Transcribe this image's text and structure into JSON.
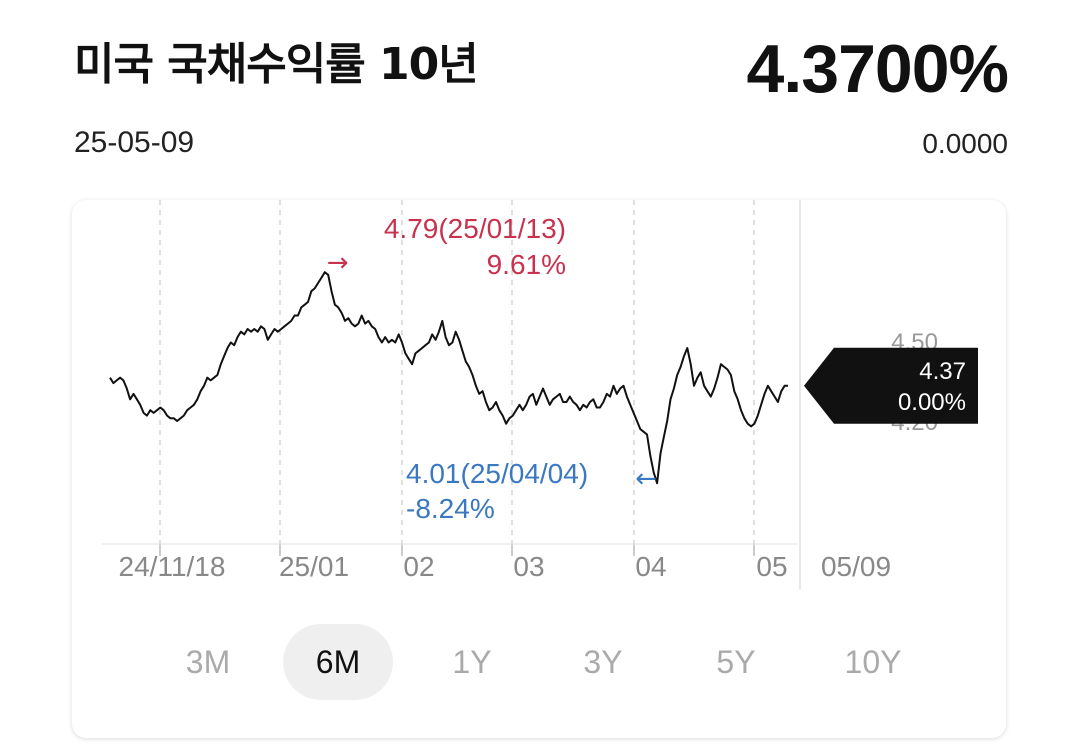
{
  "header": {
    "title": "미국 국채수익률 10년",
    "value": "4.3700%",
    "date": "25-05-09",
    "change": "0.0000"
  },
  "chart_data": {
    "type": "line",
    "x_ticks": [
      "24/11/18",
      "25/01",
      "02",
      "03",
      "04",
      "05"
    ],
    "x_end_label": "05/09",
    "y_ticks": [
      "4.50",
      "4.20"
    ],
    "high": {
      "value": "4.79",
      "date": "25/01/13",
      "pct": "9.61%",
      "color": "#c8324f"
    },
    "low": {
      "value": "4.01",
      "date": "25/04/04",
      "pct": "-8.24%",
      "color": "#3a78c2"
    },
    "current": {
      "value": "4.37",
      "pct": "0.00%"
    },
    "ylim": [
      3.8,
      5.02
    ],
    "series": [
      {
        "values": [
          4.4,
          4.38,
          4.39,
          4.4,
          4.39,
          4.36,
          4.32,
          4.34,
          4.32,
          4.3,
          4.27,
          4.26,
          4.28,
          4.27,
          4.28,
          4.29,
          4.28,
          4.26,
          4.25,
          4.25,
          4.24,
          4.25,
          4.26,
          4.28,
          4.29,
          4.3,
          4.32,
          4.35,
          4.37,
          4.4,
          4.39,
          4.4,
          4.41,
          4.45,
          4.48,
          4.51,
          4.53,
          4.52,
          4.55,
          4.57,
          4.56,
          4.58,
          4.57,
          4.58,
          4.57,
          4.59,
          4.58,
          4.54,
          4.56,
          4.58,
          4.57,
          4.58,
          4.59,
          4.6,
          4.61,
          4.63,
          4.63,
          4.66,
          4.67,
          4.68,
          4.72,
          4.73,
          4.75,
          4.77,
          4.79,
          4.78,
          4.72,
          4.67,
          4.66,
          4.64,
          4.61,
          4.62,
          4.6,
          4.59,
          4.6,
          4.63,
          4.6,
          4.61,
          4.59,
          4.58,
          4.55,
          4.53,
          4.55,
          4.53,
          4.54,
          4.53,
          4.56,
          4.53,
          4.49,
          4.47,
          4.45,
          4.49,
          4.5,
          4.51,
          4.52,
          4.53,
          4.56,
          4.54,
          4.57,
          4.61,
          4.55,
          4.52,
          4.53,
          4.57,
          4.54,
          4.5,
          4.46,
          4.44,
          4.41,
          4.37,
          4.34,
          4.35,
          4.31,
          4.28,
          4.29,
          4.31,
          4.28,
          4.26,
          4.23,
          4.25,
          4.26,
          4.28,
          4.3,
          4.28,
          4.3,
          4.33,
          4.34,
          4.3,
          4.33,
          4.36,
          4.33,
          4.3,
          4.32,
          4.33,
          4.34,
          4.31,
          4.31,
          4.33,
          4.31,
          4.3,
          4.28,
          4.3,
          4.29,
          4.31,
          4.32,
          4.29,
          4.29,
          4.31,
          4.34,
          4.33,
          4.37,
          4.34,
          4.36,
          4.37,
          4.33,
          4.3,
          4.27,
          4.24,
          4.21,
          4.2,
          4.19,
          4.11,
          4.05,
          4.01,
          4.12,
          4.18,
          4.24,
          4.32,
          4.36,
          4.41,
          4.44,
          4.48,
          4.51,
          4.45,
          4.37,
          4.4,
          4.42,
          4.37,
          4.35,
          4.33,
          4.36,
          4.4,
          4.45,
          4.44,
          4.43,
          4.41,
          4.35,
          4.32,
          4.28,
          4.25,
          4.23,
          4.22,
          4.23,
          4.26,
          4.3,
          4.34,
          4.37,
          4.35,
          4.33,
          4.31,
          4.35,
          4.37,
          4.37
        ]
      }
    ]
  },
  "periods": [
    "3M",
    "6M",
    "1Y",
    "3Y",
    "5Y",
    "10Y"
  ],
  "active_period": "6M"
}
